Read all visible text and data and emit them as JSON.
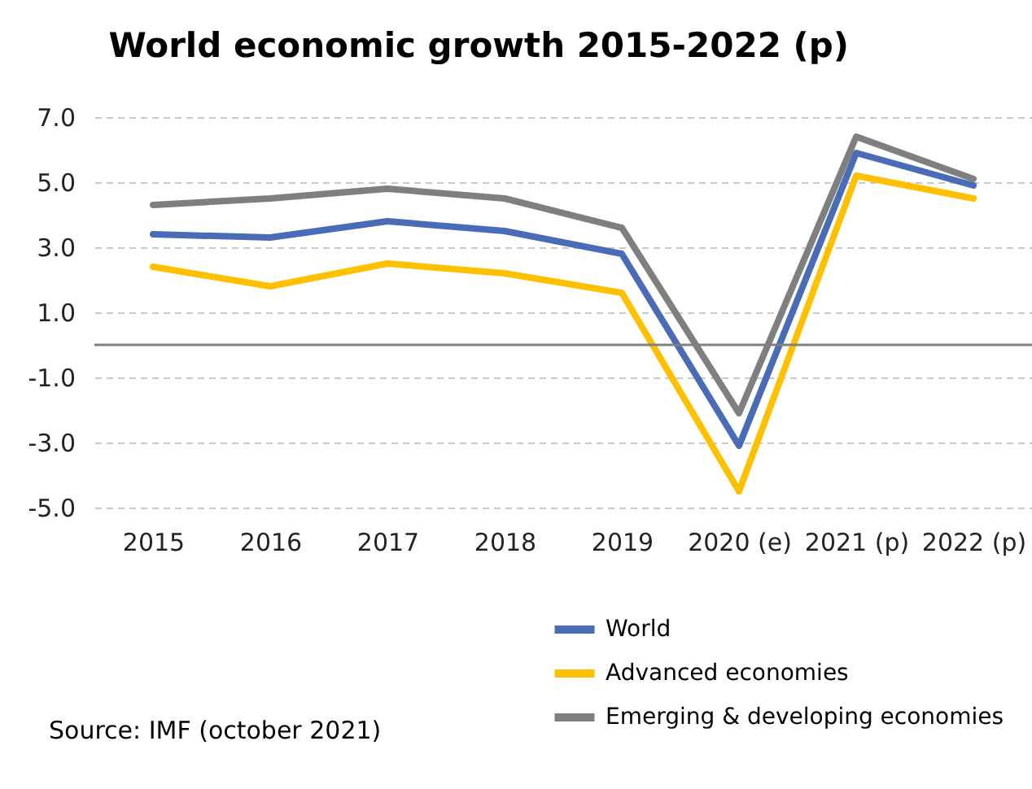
{
  "chart_data": {
    "type": "line",
    "title": "World economic growth 2015-2022 (p)",
    "categories": [
      "2015",
      "2016",
      "2017",
      "2018",
      "2019",
      "2020 (e)",
      "2021 (p)",
      "2022 (p)"
    ],
    "series": [
      {
        "name": "World",
        "color": "#4a6bb5",
        "values": [
          3.4,
          3.3,
          3.8,
          3.5,
          2.8,
          -3.1,
          5.9,
          4.9
        ]
      },
      {
        "name": "Advanced economies",
        "color": "#ffc000",
        "values": [
          2.4,
          1.8,
          2.5,
          2.2,
          1.6,
          -4.5,
          5.2,
          4.5
        ]
      },
      {
        "name": "Emerging & developing economies",
        "color": "#7f7f7f",
        "values": [
          4.3,
          4.5,
          4.8,
          4.5,
          3.6,
          -2.1,
          6.4,
          5.1
        ]
      }
    ],
    "ylim": [
      -5,
      7
    ],
    "yticks": [
      {
        "value": -5,
        "label": "-5.0"
      },
      {
        "value": -3,
        "label": "-3.0"
      },
      {
        "value": -1,
        "label": "-1.0"
      },
      {
        "value": 1,
        "label": "1.0"
      },
      {
        "value": 3,
        "label": "3.0"
      },
      {
        "value": 5,
        "label": "5.0"
      },
      {
        "value": 7,
        "label": "7.0"
      }
    ],
    "ref_lines": [
      {
        "axis": "y",
        "value": 0,
        "color": "#808080"
      }
    ],
    "grid": "y",
    "legend": "bottom",
    "line_style": "solid",
    "marker": "none",
    "annotations": [
      "Source: IMF (october 2021)"
    ]
  }
}
